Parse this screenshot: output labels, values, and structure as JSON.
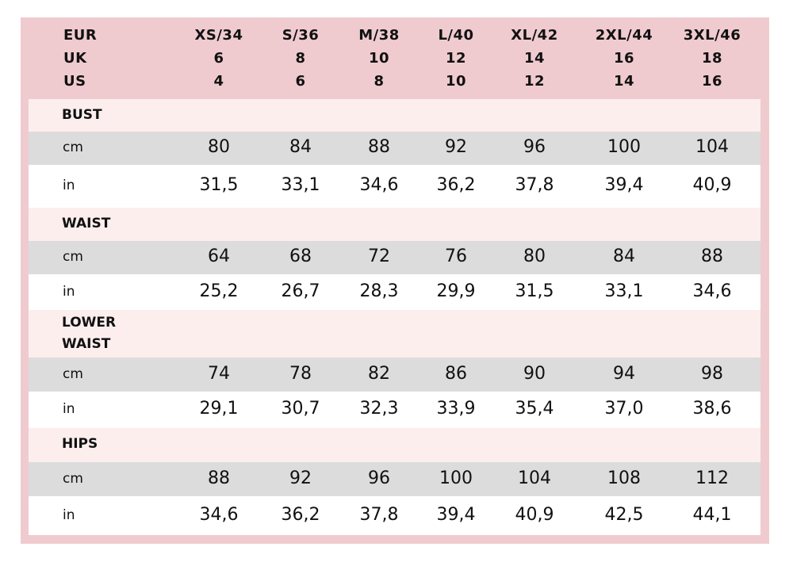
{
  "header": {
    "systems": [
      "EUR",
      "UK",
      "US"
    ],
    "sizes": [
      {
        "eur": "XS/34",
        "uk": "6",
        "us": "4"
      },
      {
        "eur": "S/36",
        "uk": "8",
        "us": "6"
      },
      {
        "eur": "M/38",
        "uk": "10",
        "us": "8"
      },
      {
        "eur": "L/40",
        "uk": "12",
        "us": "10"
      },
      {
        "eur": "XL/42",
        "uk": "14",
        "us": "12"
      },
      {
        "eur": "2XL/44",
        "uk": "16",
        "us": "14"
      },
      {
        "eur": "3XL/46",
        "uk": "18",
        "us": "16"
      }
    ]
  },
  "sections": [
    {
      "name": "BUST",
      "cm_label": "cm",
      "in_label": "in",
      "cm": [
        "80",
        "84",
        "88",
        "92",
        "96",
        "100",
        "104"
      ],
      "in": [
        "31,5",
        "33,1",
        "34,6",
        "36,2",
        "37,8",
        "39,4",
        "40,9"
      ]
    },
    {
      "name": "WAIST",
      "cm_label": "cm",
      "in_label": "in",
      "cm": [
        "64",
        "68",
        "72",
        "76",
        "80",
        "84",
        "88"
      ],
      "in": [
        "25,2",
        "26,7",
        "28,3",
        "29,9",
        "31,5",
        "33,1",
        "34,6"
      ]
    },
    {
      "name": "LOWER\nWAIST",
      "cm_label": "cm",
      "in_label": "in",
      "cm": [
        "74",
        "78",
        "82",
        "86",
        "90",
        "94",
        "98"
      ],
      "in": [
        "29,1",
        "30,7",
        "32,3",
        "33,9",
        "35,4",
        "37,0",
        "38,6"
      ]
    },
    {
      "name": "HIPS",
      "cm_label": "cm",
      "in_label": "in",
      "cm": [
        "88",
        "92",
        "96",
        "100",
        "104",
        "108",
        "112"
      ],
      "in": [
        "34,6",
        "36,2",
        "37,8",
        "39,4",
        "40,9",
        "42,5",
        "44,1"
      ]
    }
  ],
  "colors": {
    "frame": "#efcbcf",
    "section_band": "#fdeeee",
    "cm_row": "#dcdcdc",
    "in_row": "#ffffff"
  }
}
